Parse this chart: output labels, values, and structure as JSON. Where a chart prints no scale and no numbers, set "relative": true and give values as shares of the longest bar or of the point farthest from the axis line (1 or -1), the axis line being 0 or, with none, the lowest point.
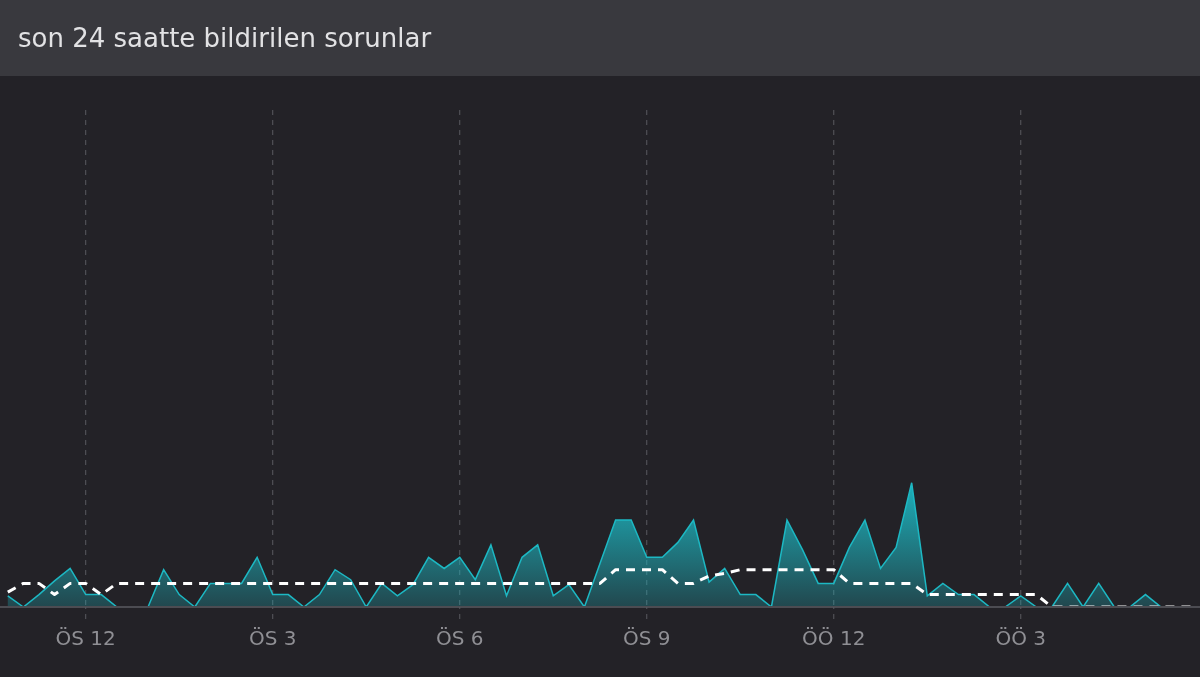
{
  "chart_data": {
    "type": "area",
    "title": "son 24 saatte bildirilen sorunlar",
    "relative": true,
    "categories": [
      null,
      null,
      null,
      null,
      null,
      "ÖS 12",
      null,
      null,
      null,
      null,
      null,
      null,
      null,
      null,
      null,
      null,
      null,
      "ÖS 3",
      null,
      null,
      null,
      null,
      null,
      null,
      null,
      null,
      null,
      null,
      null,
      "ÖS 6",
      null,
      null,
      null,
      null,
      null,
      null,
      null,
      null,
      null,
      null,
      null,
      "ÖS 9",
      null,
      null,
      null,
      null,
      null,
      null,
      null,
      null,
      null,
      null,
      null,
      "ÖÖ 12",
      null,
      null,
      null,
      null,
      null,
      null,
      null,
      null,
      null,
      null,
      null,
      "ÖÖ 3",
      null,
      null,
      null,
      null,
      null,
      null,
      null,
      null,
      null,
      null,
      null
    ],
    "grid": "x",
    "tick_labels": "x",
    "marker": "none",
    "series": [
      {
        "color": "#1db8c3",
        "values": [
          0.09,
          0,
          0.1,
          0.21,
          0.31,
          0.1,
          0.1,
          0,
          0,
          0,
          0.3,
          0.1,
          0,
          0.19,
          0.19,
          0.19,
          0.4,
          0.1,
          0.1,
          0,
          0.1,
          0.3,
          0.22,
          0,
          0.19,
          0.09,
          0.18,
          0.4,
          0.31,
          0.4,
          0.22,
          0.5,
          0.09,
          0.4,
          0.5,
          0.09,
          0.18,
          0,
          0.35,
          0.7,
          0.7,
          0.4,
          0.4,
          0.52,
          0.7,
          0.2,
          0.31,
          0.1,
          0.1,
          0,
          0.7,
          0.46,
          0.19,
          0.19,
          0.48,
          0.7,
          0.31,
          0.48,
          1,
          0.09,
          0.19,
          0.1,
          0.1,
          0,
          0,
          0.09,
          0,
          0,
          0.19,
          0,
          0.19,
          0,
          0,
          0.1,
          0,
          0,
          0
        ]
      },
      {
        "type": "line",
        "color": "#ffffff",
        "line_style": "dashed",
        "values": [
          0.12,
          0.19,
          0.19,
          0.1,
          0.19,
          0.19,
          0.1,
          0.19,
          0.19,
          0.19,
          0.19,
          0.19,
          0.19,
          0.19,
          0.19,
          0.19,
          0.19,
          0.19,
          0.19,
          0.19,
          0.19,
          0.19,
          0.19,
          0.19,
          0.19,
          0.19,
          0.19,
          0.19,
          0.19,
          0.19,
          0.19,
          0.19,
          0.19,
          0.19,
          0.19,
          0.19,
          0.19,
          0.19,
          0.19,
          0.3,
          0.3,
          0.3,
          0.3,
          0.19,
          0.19,
          0.25,
          0.27,
          0.3,
          0.3,
          0.3,
          0.3,
          0.3,
          0.3,
          0.3,
          0.19,
          0.19,
          0.19,
          0.19,
          0.19,
          0.1,
          0.1,
          0.1,
          0.1,
          0.1,
          0.1,
          0.1,
          0.1,
          0,
          0,
          0,
          0,
          0,
          0,
          0,
          0,
          0,
          0
        ]
      }
    ]
  }
}
